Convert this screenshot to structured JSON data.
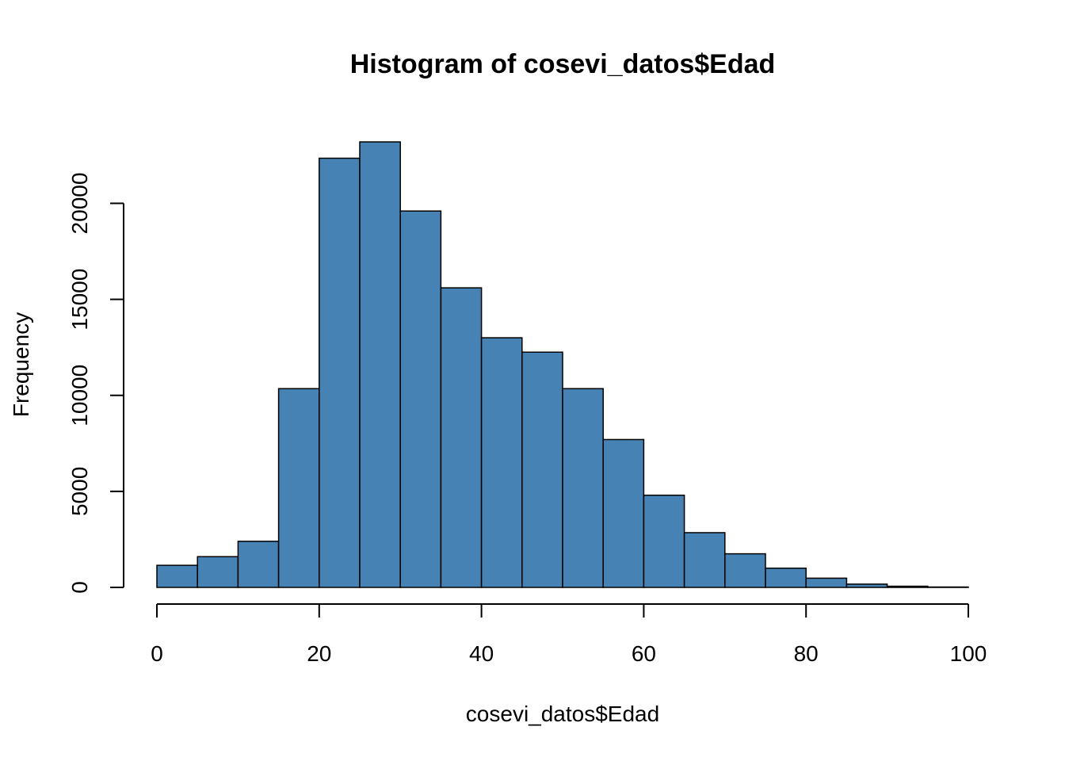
{
  "chart_data": {
    "type": "bar",
    "title": "Histogram of cosevi_datos$Edad",
    "xlabel": "cosevi_datos$Edad",
    "ylabel": "Frequency",
    "bin_edges": [
      0,
      5,
      10,
      15,
      20,
      25,
      30,
      35,
      40,
      45,
      50,
      55,
      60,
      65,
      70,
      75,
      80,
      85,
      90,
      95,
      100
    ],
    "values": [
      1150,
      1600,
      2400,
      10350,
      22350,
      23200,
      19600,
      15600,
      13000,
      12250,
      10350,
      7700,
      4800,
      2850,
      1750,
      1000,
      480,
      170,
      60,
      20
    ],
    "x_ticks": [
      0,
      20,
      40,
      60,
      80,
      100
    ],
    "y_ticks": [
      0,
      5000,
      10000,
      15000,
      20000
    ],
    "xlim": [
      0,
      100
    ],
    "ylim": [
      0,
      23200
    ],
    "grid": false,
    "bar_color": "#4682B4",
    "border_color": "#000000"
  }
}
